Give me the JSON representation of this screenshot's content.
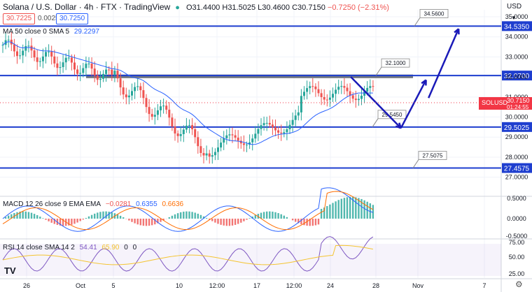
{
  "header": {
    "symbol": "Solana / U.S. Dollar · 4h · FTX · TradingView",
    "open": "O31.4400",
    "high": "H31.5025",
    "low": "L30.4600",
    "close": "C30.7150",
    "change": "−0.7250 (−2.31%)",
    "bid": "30.7225",
    "spread": "0.0025",
    "ask": "30.7250",
    "ma_legend": "MA 50 close 0 SMA 5",
    "ma_value": "29.2297"
  },
  "currency": "USD",
  "colors": {
    "up": "#26a69a",
    "down": "#ef5350",
    "ma": "#2962ff",
    "level": "#1e3ecf",
    "arrow": "#1a1ab8",
    "zone": "#5d606b",
    "macd": "#2962ff",
    "signal": "#ff6d00",
    "rsi": "#7e57c2",
    "rsi_ma": "#f4c430",
    "price_tag": "#f23645"
  },
  "price_axis": {
    "ticks": [
      "35.0000",
      "34.0000",
      "33.0000",
      "32.0000",
      "31.0000",
      "30.0000",
      "29.0000",
      "28.0000",
      "27.0000"
    ],
    "tick_values": [
      35,
      34,
      33,
      32,
      31,
      30,
      29,
      28,
      27
    ],
    "range": [
      26.5,
      35.35
    ]
  },
  "levels": [
    {
      "value": 34.535,
      "label": "34.5350",
      "callout": "34.5600"
    },
    {
      "value": 32.07,
      "label": "32.0700",
      "callout": "32.1000"
    },
    {
      "value": 29.5025,
      "label": "29.5025",
      "callout": "29.5450"
    },
    {
      "value": 27.4575,
      "label": "27.4575",
      "callout": "27.5075"
    }
  ],
  "current_price": {
    "symbol": "SOLUSD",
    "price": "30.7150",
    "countdown": "01:24:55",
    "value": 30.715
  },
  "time_axis": [
    "26",
    "Oct",
    "5",
    "10",
    "12:00",
    "17",
    "12:00",
    "24",
    "28",
    "Nov",
    "7"
  ],
  "macd": {
    "legend": "MACD 12 26 close 9 EMA EMA",
    "hist": "−0.0281",
    "macd": "0.6355",
    "signal": "0.6636",
    "ticks": [
      "0.5000",
      "0.0000",
      "-0.5000"
    ]
  },
  "rsi": {
    "legend": "RSI 14 close SMA 14 2",
    "value": "54.41",
    "ma": "65.90",
    "extra1": "0",
    "extra2": "0",
    "ticks": [
      "75.00",
      "50.00",
      "25.00"
    ]
  },
  "logo": "TV",
  "chart_data": {
    "type": "candlestick",
    "axis": {
      "price_min": 26.5,
      "price_max": 35.35
    },
    "zone": {
      "from": 31.94,
      "to": 32.12
    },
    "projection": [
      {
        "t": 0.7,
        "p": 32.0
      },
      {
        "t": 0.8,
        "p": 29.45
      },
      {
        "t": 0.85,
        "p": 31.85
      },
      {
        "t": 0.855,
        "p": 30.95
      },
      {
        "t": 0.915,
        "p": 34.4
      }
    ]
  }
}
